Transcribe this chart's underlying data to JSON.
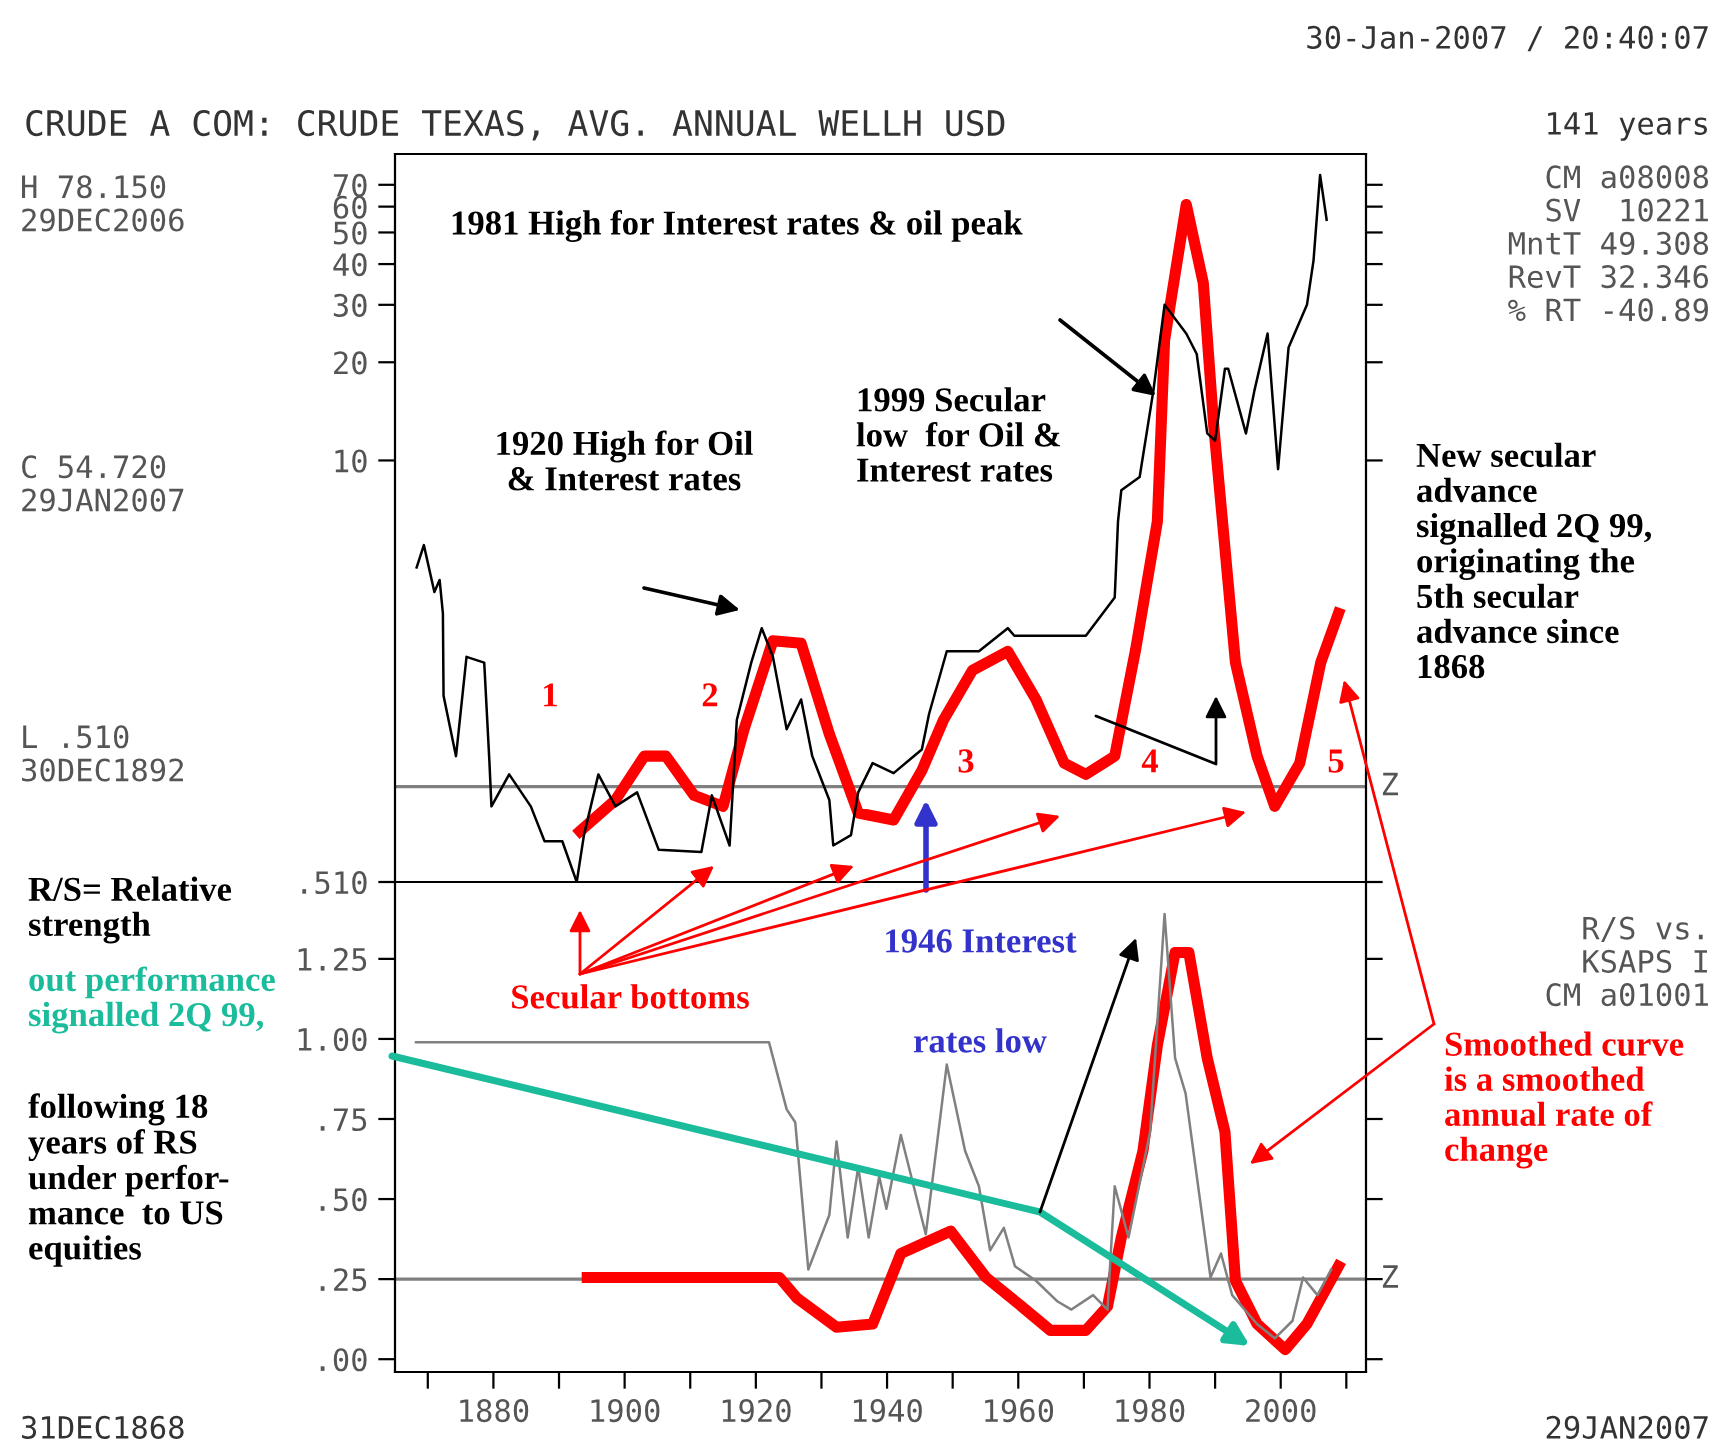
{
  "chart_data": [
    {
      "type": "line",
      "title": "CRUDE A COM: CRUDE TEXAS, AVG. ANNUAL WELLH USD",
      "log": "y",
      "xlim": [
        1865,
        2013
      ],
      "xticks": [
        {
          "value": 1870,
          "label": null
        },
        1880,
        {
          "value": 1890,
          "label": null
        },
        1900,
        {
          "value": 1910,
          "label": null
        },
        1920,
        {
          "value": 1930,
          "label": null
        },
        1940,
        {
          "value": 1950,
          "label": null
        },
        1960,
        {
          "value": 1970,
          "label": null
        },
        1980,
        {
          "value": 1990,
          "label": null
        },
        2000,
        {
          "value": 2010,
          "label": null
        }
      ],
      "ylim": [
        0.51,
        87
      ],
      "yticks": [
        {
          "value": 0.51,
          "label": ".510"
        },
        10,
        20,
        30,
        40,
        50,
        60,
        70
      ],
      "tick_labels": "y",
      "ref_lines": [
        {
          "axis": "y",
          "value": 1,
          "label": "Z",
          "color": "#808080"
        }
      ],
      "series": [
        {
          "color": "#000000",
          "x": [
            1868.3,
            1869.4,
            1871,
            1871.8,
            1872.3,
            1872.4,
            1874.3,
            1875.9,
            1878.6,
            1879.4,
            1879.7,
            1882.4,
            1885.7,
            1887.8,
            1890.5,
            1892.7,
            1893.8,
            1896,
            1898.6,
            1901.9,
            1905.2,
            1911.7,
            1913.3,
            1916,
            1917.1,
            1919.3,
            1920.9,
            1922.6,
            1924.7,
            1926.9,
            1928.6,
            1931.2,
            1931.8,
            1934.5,
            1935.6,
            1937.8,
            1941,
            1945.3,
            1946.4,
            1949.1,
            1954,
            1958.4,
            1959.4,
            1970.3,
            1974.7,
            1975.2,
            1975.7,
            1978.5,
            1980.6,
            1982.3,
            1985.6,
            1987.2,
            1988.8,
            1990,
            1991.5,
            1992,
            1994.7,
            1996,
            1998,
            1999.6,
            2001.2,
            2004,
            2005,
            2006,
            2007
          ],
          "values": [
            4.7,
            5.5,
            3.95,
            4.3,
            3.4,
            1.9,
            1.24,
            2.5,
            2.4,
            1.18,
            0.87,
            1.09,
            0.87,
            0.68,
            0.68,
            0.51,
            0.71,
            1.09,
            0.87,
            0.96,
            0.64,
            0.63,
            0.94,
            0.66,
            1.6,
            2.4,
            3.06,
            2.5,
            1.5,
            1.85,
            1.24,
            0.91,
            0.66,
            0.71,
            0.96,
            1.18,
            1.1,
            1.3,
            1.67,
            2.6,
            2.6,
            3.06,
            2.9,
            2.9,
            3.8,
            6.5,
            8.1,
            8.9,
            16.4,
            30,
            24.5,
            21.2,
            12.1,
            11.5,
            19.1,
            19.1,
            12.1,
            16.4,
            24.5,
            9.4,
            22.2,
            30,
            41,
            75,
            54.7
          ]
        },
        {
          "color": "#ff0000",
          "x": [
            1893.2,
            1898.6,
            1903,
            1906.3,
            1910.6,
            1915,
            1918.2,
            1922.6,
            1926.9,
            1931.2,
            1935.6,
            1941,
            1945.3,
            1948.6,
            1953,
            1958.4,
            1962.7,
            1967,
            1970.3,
            1974.7,
            1977.9,
            1981.2,
            1982.3,
            1985.6,
            1988.2,
            1989.8,
            1993.1,
            1996.4,
            1999.1,
            2002.9,
            2006.1,
            2008.8
          ],
          "values": [
            0.73,
            0.91,
            1.24,
            1.24,
            0.94,
            0.87,
            1.5,
            2.8,
            2.75,
            1.45,
            0.83,
            0.79,
            1.12,
            1.6,
            2.27,
            2.6,
            1.85,
            1.18,
            1.09,
            1.24,
            2.64,
            6.5,
            23.4,
            60.9,
            35,
            12.7,
            2.4,
            1.24,
            0.87,
            1.18,
            2.4,
            3.4
          ]
        }
      ],
      "annotations": [
        "141 years",
        "30-Jan-2007 / 20:40:07",
        "H 78.150\n29DEC2006",
        "C 54.720\n29JAN2007",
        "L .510\n30DEC1892",
        "CM a08008\nSV  10221\nMntT 49.308\nRevT 32.346\n% RT -40.89",
        "1981 High for Interest rates & oil peak",
        "1920 High for Oil\n& Interest rates",
        "1999 Secular\nlow  for Oil &\nInterest rates",
        "New secular\nadvance\nsignalled 2Q 99,\noriginating the\n5th secular\nadvance since\n1868",
        "1",
        "2",
        "3",
        "4",
        "5",
        "Secular bottoms",
        "1946 Interest"
      ]
    },
    {
      "type": "line",
      "xlim": [
        1865,
        2013
      ],
      "xticks": [
        {
          "value": 1870,
          "label": null
        },
        1880,
        {
          "value": 1890,
          "label": null
        },
        1900,
        {
          "value": 1910,
          "label": null
        },
        1920,
        {
          "value": 1930,
          "label": null
        },
        1940,
        {
          "value": 1950,
          "label": null
        },
        1960,
        {
          "value": 1970,
          "label": null
        },
        1980,
        {
          "value": 1990,
          "label": null
        },
        2000,
        {
          "value": 2010,
          "label": null
        }
      ],
      "ylim": [
        -0.04,
        1.49
      ],
      "yticks": [
        {
          "value": 0,
          "label": ".00"
        },
        {
          "value": 0.25,
          "label": ".25"
        },
        {
          "value": 0.5,
          "label": ".50"
        },
        {
          "value": 0.75,
          "label": ".75"
        },
        {
          "value": 1,
          "label": "1.00"
        },
        {
          "value": 1.25,
          "label": "1.25"
        }
      ],
      "ref_lines": [
        {
          "axis": "y",
          "value": 0.25,
          "label": "Z",
          "color": "#808080"
        }
      ],
      "series": [
        {
          "color": "#808080",
          "x": [
            1868.2,
            1922,
            1924.7,
            1926,
            1928,
            1931.2,
            1932.3,
            1934,
            1935.6,
            1937.2,
            1938.8,
            1939.9,
            1942.1,
            1945.9,
            1949.1,
            1951.9,
            1954,
            1955.7,
            1957.8,
            1959.5,
            1962.7,
            1966,
            1968.1,
            1971.4,
            1973.6,
            1974.7,
            1976.8,
            1980.1,
            1982.3,
            1983.9,
            1985.5,
            1989.3,
            1990.9,
            1992.6,
            1996.4,
            1999.1,
            2001.8,
            2003.4,
            2005.6,
            2007.7
          ],
          "values": [
            0.99,
            0.99,
            0.78,
            0.74,
            0.28,
            0.45,
            0.68,
            0.38,
            0.6,
            0.38,
            0.57,
            0.47,
            0.7,
            0.39,
            0.92,
            0.65,
            0.54,
            0.34,
            0.41,
            0.29,
            0.245,
            0.18,
            0.155,
            0.2,
            0.155,
            0.54,
            0.38,
            0.71,
            1.39,
            0.94,
            0.83,
            0.255,
            0.33,
            0.2,
            0.11,
            0.065,
            0.12,
            0.255,
            0.2,
            0.28
          ]
        },
        {
          "color": "#ff0000",
          "x": [
            1894.3,
            1923.6,
            1926.3,
            1932.3,
            1937.8,
            1942.1,
            1946.4,
            1949.7,
            1955.1,
            1960.5,
            1964.9,
            1970.3,
            1973.6,
            1975.7,
            1979,
            1981.2,
            1983.9,
            1986,
            1988.8,
            1991.5,
            1993.1,
            1996.4,
            2000.7,
            2004,
            2008.8
          ],
          "values": [
            0.255,
            0.255,
            0.19,
            0.1,
            0.11,
            0.33,
            0.37,
            0.4,
            0.255,
            0.165,
            0.09,
            0.09,
            0.165,
            0.38,
            0.65,
            0.98,
            1.27,
            1.27,
            0.94,
            0.71,
            0.245,
            0.11,
            0.03,
            0.11,
            0.29
          ]
        }
      ],
      "annotations": [
        "rates low",
        "R/S vs.\nKSAPS I\nCM a01001",
        "R/S= Relative\nstrength",
        "out performance\nsignalled 2Q 99,",
        "following 18\nyears of RS\nunder perfor-\nmance  to US\nequities",
        "Smoothed curve\nis a smoothed\nannual rate of\nchange",
        "31DEC1868",
        "29JAN2007"
      ]
    }
  ]
}
